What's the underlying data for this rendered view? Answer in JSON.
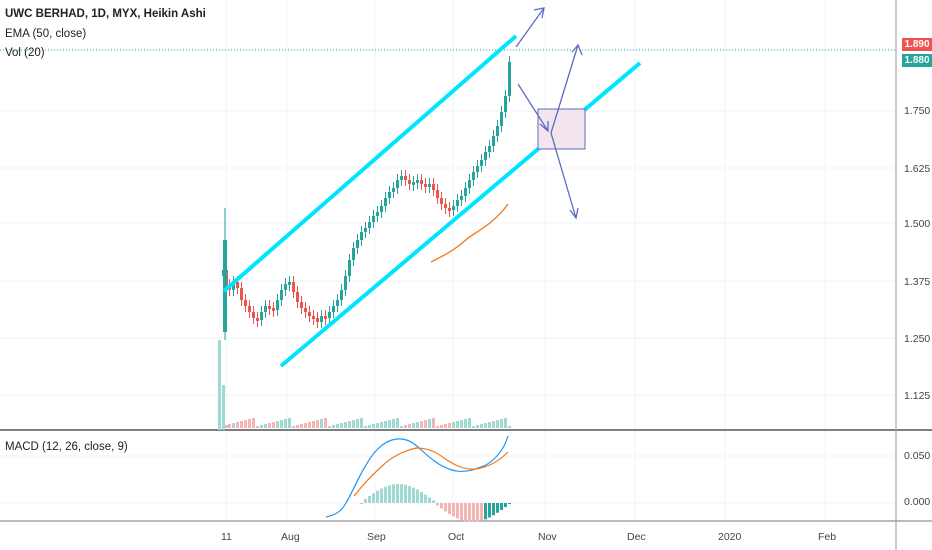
{
  "header": {
    "title": "UWC BERHAD, 1D, MYX, Heikin Ashi",
    "ema_label": "EMA (50, close)",
    "vol_label": "Vol (20)"
  },
  "macd_panel": {
    "label": "MACD (12, 26, close, 9)"
  },
  "price_badges": {
    "upper": "1.890",
    "lower": "1.880"
  },
  "colors": {
    "up": "#26a69a",
    "down": "#ef5350",
    "channel": "#00e5ff",
    "ema": "#ef7a1a",
    "macd_line": "#2196f3",
    "signal_line": "#ef7a1a",
    "annotation": "#5c6bc0",
    "box_fill": "#f3e5ee"
  },
  "chart_data": {
    "type": "candlestick",
    "price_axis_ticks": [
      "1.750",
      "1.625",
      "1.500",
      "1.375",
      "1.250",
      "1.125"
    ],
    "macd_axis_ticks": [
      "0.050",
      "0.000"
    ],
    "time_axis_ticks": [
      "11",
      "Aug",
      "Sep",
      "Oct",
      "Nov",
      "Dec",
      "2020",
      "Feb"
    ],
    "last_price": 1.89
  }
}
